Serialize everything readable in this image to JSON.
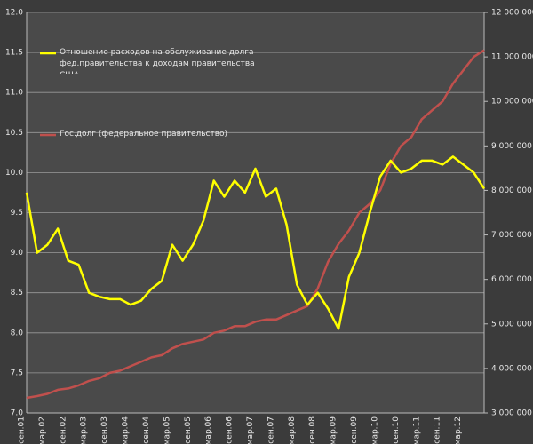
{
  "chart_data": {
    "type": "line",
    "categories": [
      "сен.01",
      null,
      "мар.02",
      null,
      "сен.02",
      null,
      "мар.03",
      null,
      "сен.03",
      null,
      "мар.04",
      null,
      "сен.04",
      null,
      "мар.05",
      null,
      "сен.05",
      null,
      "мар.06",
      null,
      "сен.06",
      null,
      "мар.07",
      null,
      "сен.07",
      null,
      "мар.08",
      null,
      "сен.08",
      null,
      "мар.09",
      null,
      "сен.09",
      null,
      "мар.10",
      null,
      "сен.10",
      null,
      "мар.11",
      null,
      "сен.11",
      null,
      "мар.12",
      null,
      null
    ],
    "series": [
      {
        "name": "Гос.долг (федеральное  правительство)",
        "color": "#c0504d",
        "axis": "y2",
        "values": [
          3340000,
          3380000,
          3430000,
          3520000,
          3550000,
          3620000,
          3720000,
          3780000,
          3900000,
          3950000,
          4050000,
          4150000,
          4250000,
          4300000,
          4450000,
          4550000,
          4600000,
          4650000,
          4800000,
          4850000,
          4950000,
          4950000,
          5050000,
          5100000,
          5100000,
          5200000,
          5300000,
          5400000,
          5800000,
          6400000,
          6800000,
          7100000,
          7500000,
          7700000,
          8000000,
          8600000,
          9000000,
          9200000,
          9600000,
          9800000,
          10000000,
          10400000,
          10700000,
          11000000,
          11150000
        ]
      },
      {
        "name": "Отношение  расходов на обслуживание долга фед.правительства  к доходам правительства США",
        "color": "#ffff00",
        "values": [
          9.75,
          9.0,
          9.1,
          9.3,
          8.9,
          8.85,
          8.5,
          8.45,
          8.42,
          8.42,
          8.35,
          8.4,
          8.55,
          8.65,
          9.1,
          8.9,
          9.1,
          9.4,
          9.9,
          9.7,
          9.9,
          9.75,
          10.05,
          9.7,
          9.8,
          9.35,
          8.6,
          8.35,
          8.5,
          8.3,
          8.05,
          8.7,
          9.0,
          9.5,
          9.95,
          10.15,
          10.0,
          10.05,
          10.15,
          10.15,
          10.1,
          10.2,
          10.1,
          10.0,
          9.8
        ]
      }
    ],
    "ylim": [
      7,
      12
    ],
    "yticks": [
      {
        "value": 7,
        "label": "7.0"
      },
      {
        "value": 7.5,
        "label": "7.5"
      },
      {
        "value": 8,
        "label": "8.0"
      },
      {
        "value": 8.5,
        "label": "8.5"
      },
      {
        "value": 9,
        "label": "9.0"
      },
      {
        "value": 9.5,
        "label": "9.5"
      },
      {
        "value": 10,
        "label": "10.0"
      },
      {
        "value": 10.5,
        "label": "10.5"
      },
      {
        "value": 11,
        "label": "11.0"
      },
      {
        "value": 11.5,
        "label": "11.5"
      },
      {
        "value": 12,
        "label": "12.0"
      }
    ],
    "y2lim": [
      3000000,
      12000000
    ],
    "y2ticks": [
      {
        "value": 3000000,
        "label": "3 000 000"
      },
      {
        "value": 4000000,
        "label": "4 000 000"
      },
      {
        "value": 5000000,
        "label": "5 000 000"
      },
      {
        "value": 6000000,
        "label": "6 000 000"
      },
      {
        "value": 7000000,
        "label": "7 000 000"
      },
      {
        "value": 8000000,
        "label": "8 000 000"
      },
      {
        "value": 9000000,
        "label": "9 000 000"
      },
      {
        "value": 10000000,
        "label": "10 000 000"
      },
      {
        "value": 11000000,
        "label": "11 000 000"
      },
      {
        "value": 12000000,
        "label": "12 000 000"
      }
    ],
    "grid": true
  }
}
